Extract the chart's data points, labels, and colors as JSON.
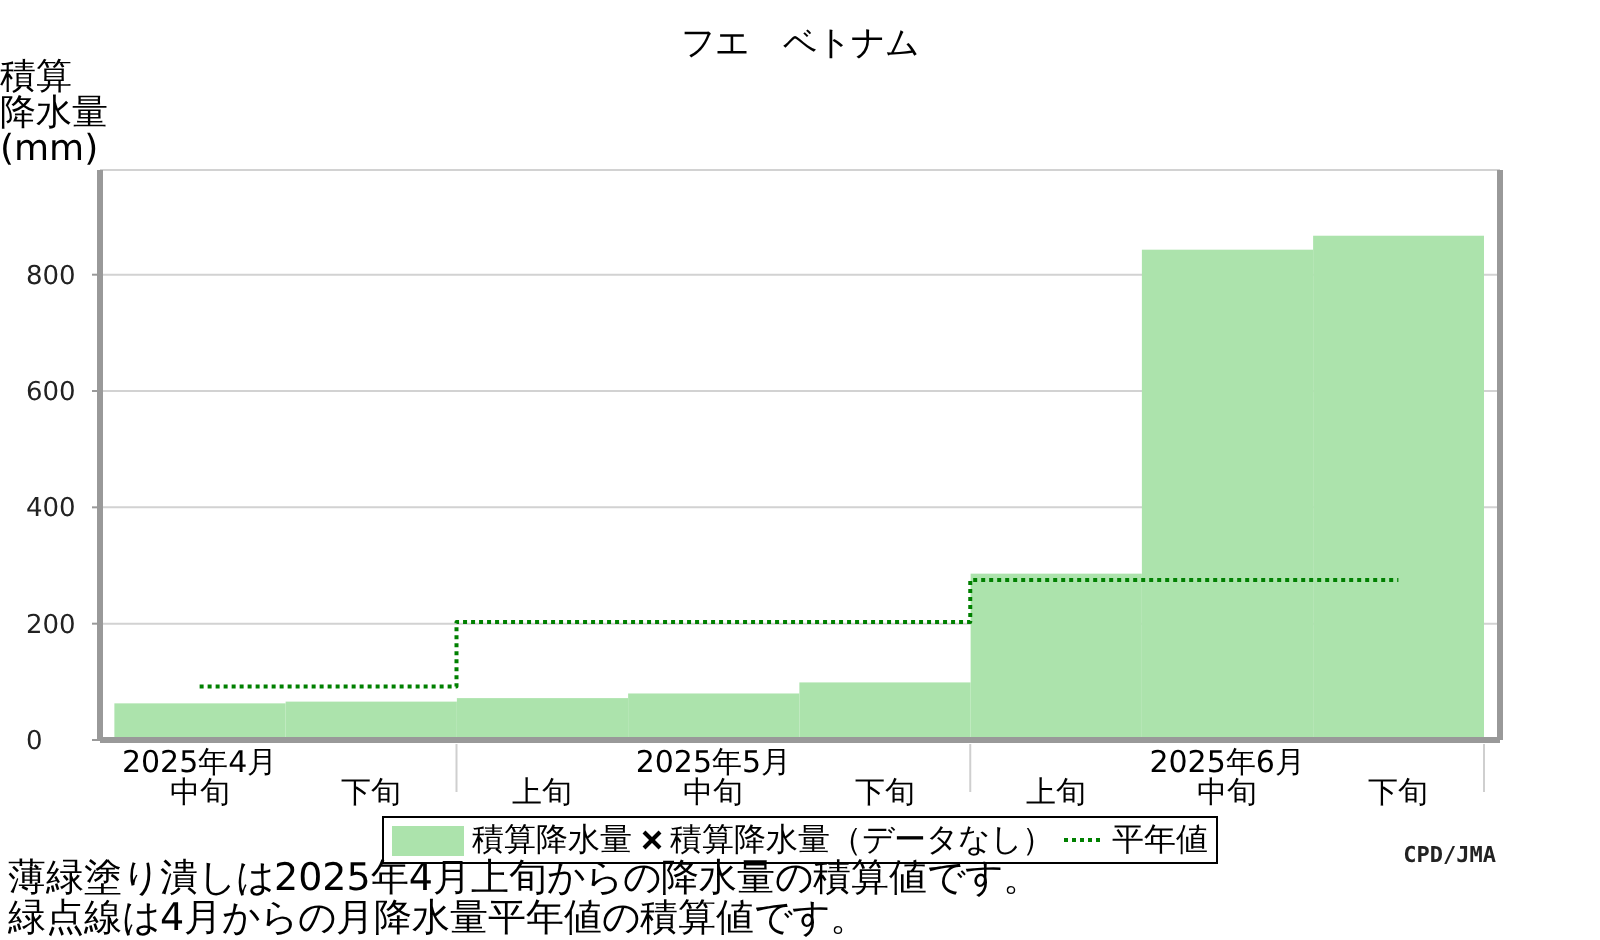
{
  "chart_data": {
    "type": "bar",
    "title": "フエ　ベトナム",
    "ylabel": "積算降水量(mm)",
    "categories": [
      "2025年4月中旬",
      "下旬",
      "上旬",
      "2025年5月中旬",
      "下旬",
      "上旬",
      "2025年6月中旬",
      "下旬"
    ],
    "series": [
      {
        "name": "積算降水量",
        "color": "#ace3ac",
        "values": [
          63,
          66,
          72,
          80,
          99,
          286,
          843,
          867
        ]
      },
      {
        "name": "積算降水量（データなし）",
        "type": "scatter",
        "color": "#000000",
        "marker": "cross",
        "values": [
          null,
          null,
          null,
          null,
          null,
          null,
          null,
          null
        ]
      },
      {
        "name": "平年値",
        "type": "step",
        "color": "#008000",
        "line_style": "dotted",
        "values": [
          92,
          92,
          203,
          203,
          203,
          275,
          275,
          275
        ]
      }
    ],
    "ylim": [
      0,
      980
    ],
    "yticks": [
      0,
      200,
      400,
      600,
      800
    ],
    "grid": "y",
    "legend": "bottom",
    "annotations": [
      "薄緑塗り潰しは2025年4月上旬からの降水量の積算値です。",
      "緑点線は4月からの月降水量平年値の積算値です。",
      "CPD/JMA"
    ]
  }
}
